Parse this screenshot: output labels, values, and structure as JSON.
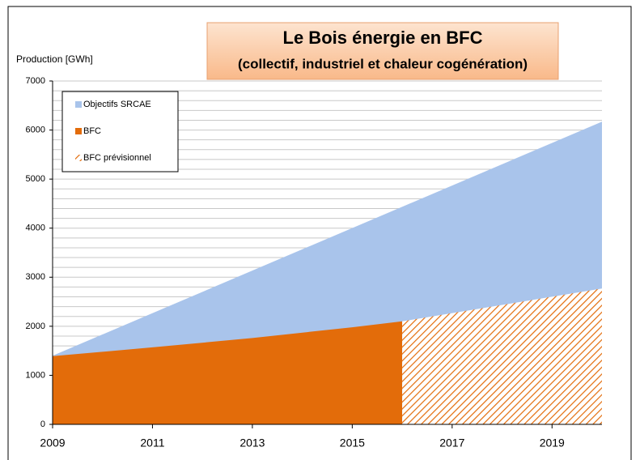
{
  "chart_data": {
    "type": "area",
    "title": "Le Bois énergie en BFC",
    "subtitle": "(collectif, industriel et chaleur cogénération)",
    "y_label": "Production [GWh]",
    "xlim": [
      2009,
      2020
    ],
    "xticks": [
      2009,
      2011,
      2013,
      2015,
      2017,
      2019
    ],
    "ylim": [
      0,
      7000
    ],
    "yticks": [
      0,
      1000,
      2000,
      3000,
      4000,
      5000,
      6000,
      7000
    ],
    "minor_yticks": [
      200,
      400,
      600,
      800,
      1200,
      1400,
      1600,
      1800,
      2200,
      2400,
      2600,
      2800,
      3200,
      3400,
      3600,
      3800,
      4200,
      4400,
      4600,
      4800,
      5200,
      5400,
      5600,
      5800,
      6200,
      6400,
      6600,
      6800
    ],
    "grid": true,
    "legend": "upper left",
    "series": [
      {
        "name": "Objectifs SRCAE",
        "color": "#a9c4eb",
        "x": [
          2009,
          2020
        ],
        "values": [
          1400,
          6170
        ]
      },
      {
        "name": "BFC",
        "color": "#e36c0a",
        "x": [
          2009,
          2011,
          2013,
          2015,
          2016
        ],
        "values": [
          1390,
          1570,
          1760,
          1980,
          2100
        ]
      },
      {
        "name": "BFC prévisionnel",
        "color": "#e36c0a",
        "pattern": "hatch",
        "x": [
          2016,
          2020
        ],
        "values": [
          2100,
          2770
        ]
      }
    ]
  }
}
